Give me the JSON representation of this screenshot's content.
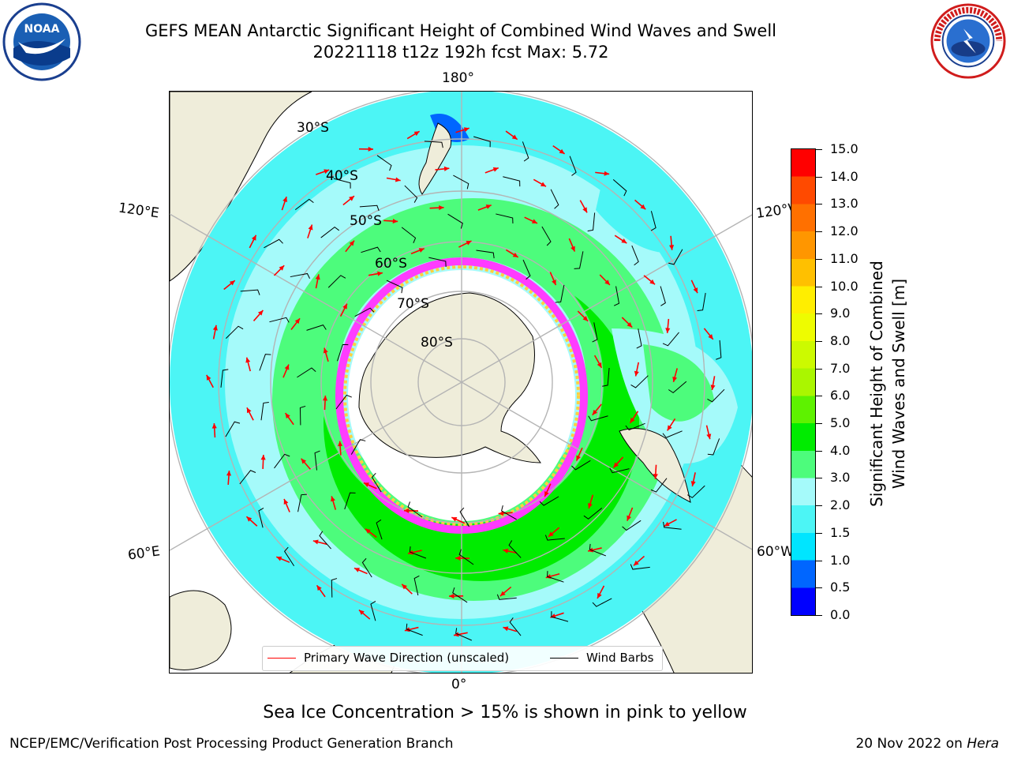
{
  "header": {
    "title_line1": "GEFS MEAN Antarctic Significant Height of Combined Wind Waves and Swell",
    "title_line2": "20221118 t12z 192h fcst   Max: 5.72",
    "logo_left": "noaa-logo",
    "logo_right": "national-weather-service-logo"
  },
  "map": {
    "projection": "south-polar-stereographic",
    "longitude_labels": {
      "top": "180°",
      "upper_left": "120°E",
      "upper_right": "120°W",
      "lower_left": "60°E",
      "lower_right": "60°W",
      "bottom": "0°"
    },
    "latitude_labels": [
      "30°S",
      "40°S",
      "50°S",
      "60°S",
      "70°S",
      "80°S"
    ],
    "colors": {
      "land": "#efedda",
      "ocean_fill": "#ffffff",
      "graticule": "#b4b4b4",
      "coast": "#000000",
      "ice_edge_pink": "#ff3cff",
      "ice_edge_yellow": "#ffd040"
    }
  },
  "legend": {
    "primary_wave_label": "Primary Wave Direction (unscaled)",
    "primary_wave_color": "#ff0000",
    "wind_barbs_label": "Wind Barbs",
    "wind_barbs_color": "#000000"
  },
  "colorbar": {
    "label_line1": "Significant Height of Combined",
    "label_line2": "Wind Waves and Swell [m]",
    "ticks": [
      "15.0",
      "14.0",
      "13.0",
      "12.0",
      "11.0",
      "10.0",
      "9.0",
      "8.0",
      "7.0",
      "6.0",
      "5.0",
      "4.0",
      "3.0",
      "2.0",
      "1.5",
      "1.0",
      "0.5",
      "0.0"
    ],
    "bins": [
      {
        "from": 0.0,
        "to": 0.5,
        "color": "#0000ff"
      },
      {
        "from": 0.5,
        "to": 1.0,
        "color": "#0066ff"
      },
      {
        "from": 1.0,
        "to": 1.5,
        "color": "#00e5ff"
      },
      {
        "from": 1.5,
        "to": 2.0,
        "color": "#4cf5f5"
      },
      {
        "from": 2.0,
        "to": 3.0,
        "color": "#a5fafa"
      },
      {
        "from": 3.0,
        "to": 4.0,
        "color": "#4dfc7c"
      },
      {
        "from": 4.0,
        "to": 5.0,
        "color": "#00ec00"
      },
      {
        "from": 5.0,
        "to": 6.0,
        "color": "#5ef200"
      },
      {
        "from": 6.0,
        "to": 7.0,
        "color": "#aaf600"
      },
      {
        "from": 7.0,
        "to": 8.0,
        "color": "#ccfa00"
      },
      {
        "from": 8.0,
        "to": 9.0,
        "color": "#eefc00"
      },
      {
        "from": 9.0,
        "to": 10.0,
        "color": "#ffee00"
      },
      {
        "from": 10.0,
        "to": 11.0,
        "color": "#ffc000"
      },
      {
        "from": 11.0,
        "to": 12.0,
        "color": "#ff9600"
      },
      {
        "from": 12.0,
        "to": 13.0,
        "color": "#ff7000"
      },
      {
        "from": 13.0,
        "to": 14.0,
        "color": "#ff4a00"
      },
      {
        "from": 14.0,
        "to": 15.0,
        "color": "#ff0000"
      }
    ]
  },
  "note": "Sea Ice Concentration > 15% is shown in pink to yellow",
  "footer": {
    "left": "NCEP/EMC/Verification Post Processing Product Generation Branch",
    "right_date": "20 Nov 2022 on ",
    "right_host": "Hera"
  }
}
